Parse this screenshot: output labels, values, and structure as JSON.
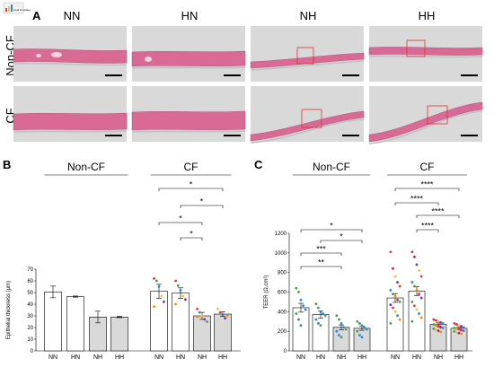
{
  "logo_text": "check for updates",
  "panels": {
    "A": "A",
    "B": "B",
    "C": "C"
  },
  "micrographs": {
    "columns": [
      "NN",
      "HN",
      "NH",
      "HH"
    ],
    "rows": [
      "Non-CF",
      "CF"
    ],
    "colors": {
      "background": "#d9d9d9",
      "tissue": "#d86a95",
      "highlight_box": "#e03030"
    }
  },
  "chart_data": [
    {
      "type": "bar",
      "panel": "B",
      "categories": [
        "NN",
        "HN",
        "NH",
        "HH",
        "NN",
        "HN",
        "NH",
        "HH"
      ],
      "groups": [
        "Non-CF",
        "CF"
      ],
      "values": [
        50.5,
        46.5,
        29,
        29,
        51,
        49.5,
        30,
        31.5
      ],
      "errors": [
        5,
        0.5,
        5,
        0.5,
        6,
        4.5,
        3,
        2
      ],
      "bar_colors": [
        "#ffffff",
        "#ffffff",
        "#d9d9d9",
        "#d9d9d9",
        "#ffffff",
        "#ffffff",
        "#d9d9d9",
        "#d9d9d9"
      ],
      "ylabel": "Epithelial thickness (μm)",
      "ylim": [
        0,
        70
      ],
      "yticks": [
        "0",
        "10",
        "20",
        "30",
        "40",
        "50",
        "60",
        "70"
      ],
      "points": [
        [],
        [],
        [],
        [],
        [
          {
            "y": 62,
            "c": "#e53935"
          },
          {
            "y": 60,
            "c": "#43a047"
          },
          {
            "y": 55,
            "c": "#1e88e5"
          },
          {
            "y": 47,
            "c": "#fbc02d"
          },
          {
            "y": 42,
            "c": "#8e24aa"
          },
          {
            "y": 38,
            "c": "#fb8c00"
          }
        ],
        [
          {
            "y": 60,
            "c": "#e53935"
          },
          {
            "y": 56,
            "c": "#43a047"
          },
          {
            "y": 52,
            "c": "#1e88e5"
          },
          {
            "y": 47,
            "c": "#fbc02d"
          },
          {
            "y": 44,
            "c": "#8e24aa"
          },
          {
            "y": 40,
            "c": "#fb8c00"
          }
        ],
        [
          {
            "y": 36,
            "c": "#e53935"
          },
          {
            "y": 33,
            "c": "#1e88e5"
          },
          {
            "y": 30,
            "c": "#fbc02d"
          },
          {
            "y": 27,
            "c": "#8e24aa"
          },
          {
            "y": 25,
            "c": "#43a047"
          },
          {
            "y": 29,
            "c": "#fb8c00"
          }
        ],
        [
          {
            "y": 36,
            "c": "#fbc02d"
          },
          {
            "y": 33,
            "c": "#e53935"
          },
          {
            "y": 31,
            "c": "#1e88e5"
          },
          {
            "y": 28,
            "c": "#8e24aa"
          },
          {
            "y": 30,
            "c": "#fb8c00"
          }
        ]
      ],
      "significance": [
        {
          "from": 4,
          "to": 7,
          "label": "*"
        },
        {
          "from": 5,
          "to": 7,
          "label": "*"
        },
        {
          "from": 4,
          "to": 6,
          "label": "*"
        },
        {
          "from": 5,
          "to": 6,
          "label": "*"
        }
      ]
    },
    {
      "type": "bar",
      "panel": "C",
      "categories": [
        "NN",
        "HN",
        "NH",
        "HH",
        "NN",
        "HN",
        "NH",
        "HH"
      ],
      "groups": [
        "Non-CF",
        "CF"
      ],
      "values": [
        440,
        370,
        240,
        230,
        540,
        610,
        270,
        230
      ],
      "errors": [
        45,
        35,
        25,
        20,
        45,
        45,
        15,
        10
      ],
      "bar_colors": [
        "#ffffff",
        "#ffffff",
        "#d9d9d9",
        "#d9d9d9",
        "#ffffff",
        "#ffffff",
        "#d9d9d9",
        "#d9d9d9"
      ],
      "ylabel": "TEER (Ω.cm²)",
      "ylim": [
        0,
        1200
      ],
      "yticks": [
        "0",
        "200",
        "400",
        "600",
        "800",
        "1000",
        "1200"
      ],
      "points": [
        [
          {
            "y": 640,
            "c": "#43a047"
          },
          {
            "y": 600,
            "c": "#43a047"
          },
          {
            "y": 520,
            "c": "#1e88e5"
          },
          {
            "y": 460,
            "c": "#1e88e5"
          },
          {
            "y": 420,
            "c": "#1e88e5"
          },
          {
            "y": 380,
            "c": "#43a047"
          },
          {
            "y": 320,
            "c": "#1e88e5"
          },
          {
            "y": 260,
            "c": "#1e88e5"
          }
        ],
        [
          {
            "y": 480,
            "c": "#43a047"
          },
          {
            "y": 440,
            "c": "#43a047"
          },
          {
            "y": 400,
            "c": "#1e88e5"
          },
          {
            "y": 380,
            "c": "#1e88e5"
          },
          {
            "y": 360,
            "c": "#43a047"
          },
          {
            "y": 320,
            "c": "#1e88e5"
          },
          {
            "y": 280,
            "c": "#1e88e5"
          },
          {
            "y": 260,
            "c": "#43a047"
          }
        ],
        [
          {
            "y": 360,
            "c": "#43a047"
          },
          {
            "y": 320,
            "c": "#43a047"
          },
          {
            "y": 280,
            "c": "#1e88e5"
          },
          {
            "y": 240,
            "c": "#1e88e5"
          },
          {
            "y": 220,
            "c": "#43a047"
          },
          {
            "y": 200,
            "c": "#1e88e5"
          },
          {
            "y": 160,
            "c": "#1e88e5"
          },
          {
            "y": 140,
            "c": "#43a047"
          }
        ],
        [
          {
            "y": 300,
            "c": "#43a047"
          },
          {
            "y": 280,
            "c": "#1e88e5"
          },
          {
            "y": 260,
            "c": "#43a047"
          },
          {
            "y": 240,
            "c": "#1e88e5"
          },
          {
            "y": 220,
            "c": "#1e88e5"
          },
          {
            "y": 200,
            "c": "#43a047"
          },
          {
            "y": 160,
            "c": "#1e88e5"
          },
          {
            "y": 140,
            "c": "#1e88e5"
          }
        ],
        [
          {
            "y": 1010,
            "c": "#e53935"
          },
          {
            "y": 840,
            "c": "#d81b60"
          },
          {
            "y": 760,
            "c": "#fbc02d"
          },
          {
            "y": 700,
            "c": "#8e24aa"
          },
          {
            "y": 660,
            "c": "#e53935"
          },
          {
            "y": 620,
            "c": "#1e88e5"
          },
          {
            "y": 580,
            "c": "#43a047"
          },
          {
            "y": 560,
            "c": "#fb8c00"
          },
          {
            "y": 520,
            "c": "#d81b60"
          },
          {
            "y": 500,
            "c": "#43a047"
          },
          {
            "y": 470,
            "c": "#8e24aa"
          },
          {
            "y": 440,
            "c": "#e53935"
          },
          {
            "y": 400,
            "c": "#fbc02d"
          },
          {
            "y": 360,
            "c": "#1e88e5"
          },
          {
            "y": 320,
            "c": "#fb8c00"
          },
          {
            "y": 280,
            "c": "#43a047"
          }
        ],
        [
          {
            "y": 1010,
            "c": "#e53935"
          },
          {
            "y": 960,
            "c": "#d81b60"
          },
          {
            "y": 880,
            "c": "#8e24aa"
          },
          {
            "y": 820,
            "c": "#fbc02d"
          },
          {
            "y": 760,
            "c": "#e53935"
          },
          {
            "y": 700,
            "c": "#1e88e5"
          },
          {
            "y": 660,
            "c": "#43a047"
          },
          {
            "y": 620,
            "c": "#fb8c00"
          },
          {
            "y": 580,
            "c": "#d81b60"
          },
          {
            "y": 540,
            "c": "#8e24aa"
          },
          {
            "y": 500,
            "c": "#43a047"
          },
          {
            "y": 460,
            "c": "#e53935"
          },
          {
            "y": 420,
            "c": "#fbc02d"
          },
          {
            "y": 380,
            "c": "#1e88e5"
          },
          {
            "y": 340,
            "c": "#fb8c00"
          },
          {
            "y": 300,
            "c": "#43a047"
          }
        ],
        [
          {
            "y": 320,
            "c": "#e53935"
          },
          {
            "y": 310,
            "c": "#d81b60"
          },
          {
            "y": 300,
            "c": "#fbc02d"
          },
          {
            "y": 290,
            "c": "#8e24aa"
          },
          {
            "y": 280,
            "c": "#1e88e5"
          },
          {
            "y": 270,
            "c": "#43a047"
          },
          {
            "y": 260,
            "c": "#fb8c00"
          },
          {
            "y": 250,
            "c": "#e53935"
          },
          {
            "y": 240,
            "c": "#d81b60"
          },
          {
            "y": 235,
            "c": "#1e88e5"
          },
          {
            "y": 225,
            "c": "#43a047"
          },
          {
            "y": 215,
            "c": "#fbc02d"
          },
          {
            "y": 205,
            "c": "#8e24aa"
          },
          {
            "y": 195,
            "c": "#fb8c00"
          }
        ],
        [
          {
            "y": 280,
            "c": "#e53935"
          },
          {
            "y": 270,
            "c": "#d81b60"
          },
          {
            "y": 260,
            "c": "#fbc02d"
          },
          {
            "y": 250,
            "c": "#8e24aa"
          },
          {
            "y": 240,
            "c": "#1e88e5"
          },
          {
            "y": 235,
            "c": "#43a047"
          },
          {
            "y": 228,
            "c": "#fb8c00"
          },
          {
            "y": 220,
            "c": "#e53935"
          },
          {
            "y": 212,
            "c": "#d81b60"
          },
          {
            "y": 205,
            "c": "#1e88e5"
          },
          {
            "y": 198,
            "c": "#43a047"
          },
          {
            "y": 190,
            "c": "#fbc02d"
          },
          {
            "y": 182,
            "c": "#8e24aa"
          },
          {
            "y": 175,
            "c": "#fb8c00"
          }
        ]
      ],
      "significance": [
        {
          "from": 0,
          "to": 3,
          "label": "*"
        },
        {
          "from": 1,
          "to": 3,
          "label": "*"
        },
        {
          "from": 0,
          "to": 2,
          "label": "***"
        },
        {
          "from": 0,
          "to": 2,
          "label": "**"
        },
        {
          "from": 4,
          "to": 7,
          "label": "****"
        },
        {
          "from": 4,
          "to": 6,
          "label": "****"
        },
        {
          "from": 5,
          "to": 7,
          "label": "****"
        },
        {
          "from": 5,
          "to": 6,
          "label": "****"
        }
      ]
    }
  ]
}
